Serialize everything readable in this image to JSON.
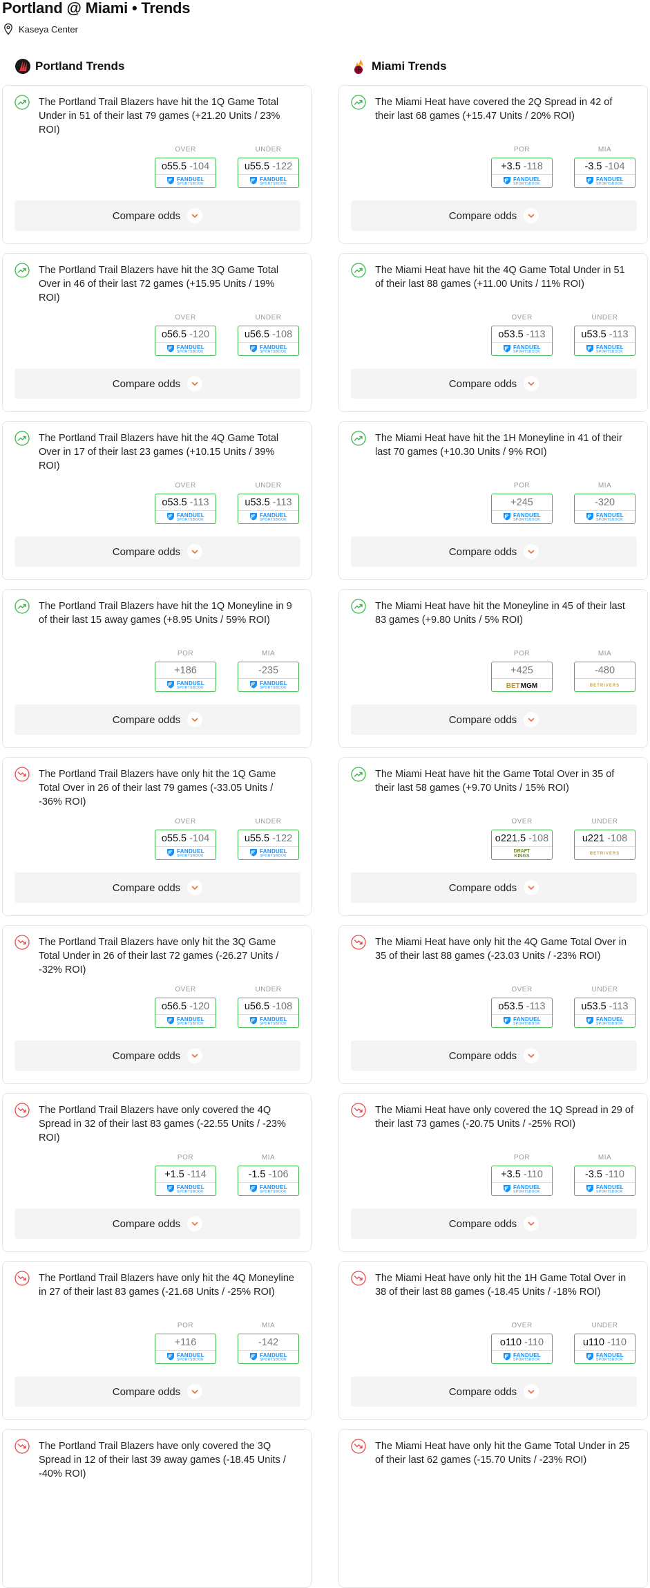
{
  "page": {
    "title": "Portland @ Miami • Trends",
    "venue": "Kaseya Center",
    "venue_icon": "location-pin-icon"
  },
  "theme": {
    "up_color": "#3cb54a",
    "down_color": "#e5484d",
    "accent": "#e8703a"
  },
  "compare_label": "Compare odds",
  "columns": [
    {
      "title": "Portland Trends",
      "team_icon": "trail-blazers-logo-icon",
      "cards": [
        {
          "dir": "up",
          "text": "The Portland Trail Blazers have hit the 1Q Game Total Under in 51 of their last 79 games (+21.20 Units / 23% ROI)",
          "o1": {
            "hd": "OVER",
            "pt": "o55.5",
            "pr": "-104",
            "book": "fanduel"
          },
          "o2": {
            "hd": "UNDER",
            "pt": "u55.5",
            "pr": "-122",
            "book": "fanduel"
          }
        },
        {
          "dir": "up",
          "text": "The Portland Trail Blazers have hit the 3Q Game Total Over in 46 of their last 72 games (+15.95 Units / 19% ROI)",
          "o1": {
            "hd": "OVER",
            "pt": "o56.5",
            "pr": "-120",
            "book": "fanduel"
          },
          "o2": {
            "hd": "UNDER",
            "pt": "u56.5",
            "pr": "-108",
            "book": "fanduel"
          }
        },
        {
          "dir": "up",
          "text": "The Portland Trail Blazers have hit the 4Q Game Total Over in 17 of their last 23 games (+10.15 Units / 39% ROI)",
          "o1": {
            "hd": "OVER",
            "pt": "o53.5",
            "pr": "-113",
            "book": "fanduel"
          },
          "o2": {
            "hd": "UNDER",
            "pt": "u53.5",
            "pr": "-113",
            "book": "fanduel"
          }
        },
        {
          "dir": "up",
          "text": "The Portland Trail Blazers have hit the 1Q Moneyline in 9 of their last 15 away games (+8.95 Units / 59% ROI)",
          "o1": {
            "hd": "POR",
            "pt": "",
            "pr": "+186",
            "book": "fanduel"
          },
          "o2": {
            "hd": "MIA",
            "pt": "",
            "pr": "-235",
            "book": "fanduel"
          }
        },
        {
          "dir": "down",
          "text": "The Portland Trail Blazers have only hit the 1Q Game Total Over in 26 of their last 79 games (-33.05 Units / -36% ROI)",
          "o1": {
            "hd": "OVER",
            "pt": "o55.5",
            "pr": "-104",
            "book": "fanduel"
          },
          "o2": {
            "hd": "UNDER",
            "pt": "u55.5",
            "pr": "-122",
            "book": "fanduel"
          }
        },
        {
          "dir": "down",
          "text": "The Portland Trail Blazers have only hit the 3Q Game Total Under in 26 of their last 72 games (-26.27 Units / -32% ROI)",
          "o1": {
            "hd": "OVER",
            "pt": "o56.5",
            "pr": "-120",
            "book": "fanduel"
          },
          "o2": {
            "hd": "UNDER",
            "pt": "u56.5",
            "pr": "-108",
            "book": "fanduel"
          }
        },
        {
          "dir": "down",
          "text": "The Portland Trail Blazers have only covered the 4Q Spread in 32 of their last 83 games (-22.55 Units / -23% ROI)",
          "o1": {
            "hd": "POR",
            "pt": "+1.5",
            "pr": "-114",
            "book": "fanduel"
          },
          "o2": {
            "hd": "MIA",
            "pt": "-1.5",
            "pr": "-106",
            "book": "fanduel"
          }
        },
        {
          "dir": "down",
          "text": "The Portland Trail Blazers have only hit the 4Q Moneyline in 27 of their last 83 games (-21.68 Units / -25% ROI)",
          "o1": {
            "hd": "POR",
            "pt": "",
            "pr": "+116",
            "book": "fanduel"
          },
          "o2": {
            "hd": "MIA",
            "pt": "",
            "pr": "-142",
            "book": "fanduel"
          }
        },
        {
          "dir": "down",
          "text": "The Portland Trail Blazers have only covered the 3Q Spread in 12 of their last 39 away games (-18.45 Units / -40% ROI)",
          "o1": null,
          "o2": null
        }
      ]
    },
    {
      "title": "Miami Trends",
      "team_icon": "heat-logo-icon",
      "cards": [
        {
          "dir": "up",
          "text": "The Miami Heat have covered the 2Q Spread in 42 of their last 68 games (+15.47 Units / 20% ROI)",
          "o1": {
            "hd": "POR",
            "pt": "+3.5",
            "pr": "-118",
            "book": "fanduel"
          },
          "o2": {
            "hd": "MIA",
            "pt": "-3.5",
            "pr": "-104",
            "book": "fanduel"
          }
        },
        {
          "dir": "up",
          "text": "The Miami Heat have hit the 4Q Game Total Under in 51 of their last 88 games (+11.00 Units / 11% ROI)",
          "o1": {
            "hd": "OVER",
            "pt": "o53.5",
            "pr": "-113",
            "book": "fanduel"
          },
          "o2": {
            "hd": "UNDER",
            "pt": "u53.5",
            "pr": "-113",
            "book": "fanduel"
          }
        },
        {
          "dir": "up",
          "text": "The Miami Heat have hit the 1H Moneyline in 41 of their last 70 games (+10.30 Units / 9% ROI)",
          "o1": {
            "hd": "POR",
            "pt": "",
            "pr": "+245",
            "book": "fanduel"
          },
          "o2": {
            "hd": "MIA",
            "pt": "",
            "pr": "-320",
            "book": "fanduel"
          }
        },
        {
          "dir": "up",
          "text": "The Miami Heat have hit the Moneyline in 45 of their last 83 games (+9.80 Units / 5% ROI)",
          "o1": {
            "hd": "POR",
            "pt": "",
            "pr": "+425",
            "book": "betmgm"
          },
          "o2": {
            "hd": "MIA",
            "pt": "",
            "pr": "-480",
            "book": "betrivers"
          }
        },
        {
          "dir": "up",
          "text": "The Miami Heat have hit the Game Total Over in 35 of their last 58 games (+9.70 Units / 15% ROI)",
          "o1": {
            "hd": "OVER",
            "pt": "o221.5",
            "pr": "-108",
            "book": "draftkings"
          },
          "o2": {
            "hd": "UNDER",
            "pt": "u221",
            "pr": "-108",
            "book": "betrivers"
          }
        },
        {
          "dir": "down",
          "text": "The Miami Heat have only hit the 4Q Game Total Over in 35 of their last 88 games (-23.03 Units / -23% ROI)",
          "o1": {
            "hd": "OVER",
            "pt": "o53.5",
            "pr": "-113",
            "book": "fanduel"
          },
          "o2": {
            "hd": "UNDER",
            "pt": "u53.5",
            "pr": "-113",
            "book": "fanduel"
          }
        },
        {
          "dir": "down",
          "text": "The Miami Heat have only covered the 1Q Spread in 29 of their last 73 games (-20.75 Units / -25% ROI)",
          "o1": {
            "hd": "POR",
            "pt": "+3.5",
            "pr": "-110",
            "book": "fanduel"
          },
          "o2": {
            "hd": "MIA",
            "pt": "-3.5",
            "pr": "-110",
            "book": "fanduel"
          }
        },
        {
          "dir": "down",
          "text": "The Miami Heat have only hit the 1H Game Total Over in 38 of their last 88 games (-18.45 Units / -18% ROI)",
          "o1": {
            "hd": "OVER",
            "pt": "o110",
            "pr": "-110",
            "book": "fanduel"
          },
          "o2": {
            "hd": "UNDER",
            "pt": "u110",
            "pr": "-110",
            "book": "fanduel"
          }
        },
        {
          "dir": "down",
          "text": "The Miami Heat have only hit the Game Total Under in 25 of their last 62 games (-15.70 Units / -23% ROI)",
          "o1": null,
          "o2": null
        }
      ]
    }
  ],
  "books": {
    "fanduel": {
      "line1": "FANDUEL",
      "line2": "SPORTSBOOK"
    },
    "betmgm": {
      "b": "BET",
      "rest": "MGM"
    },
    "betrivers": {
      "label": "BETRIVERS"
    },
    "draftkings": {
      "line1": "DRAFT",
      "line2": "KINGS"
    }
  }
}
